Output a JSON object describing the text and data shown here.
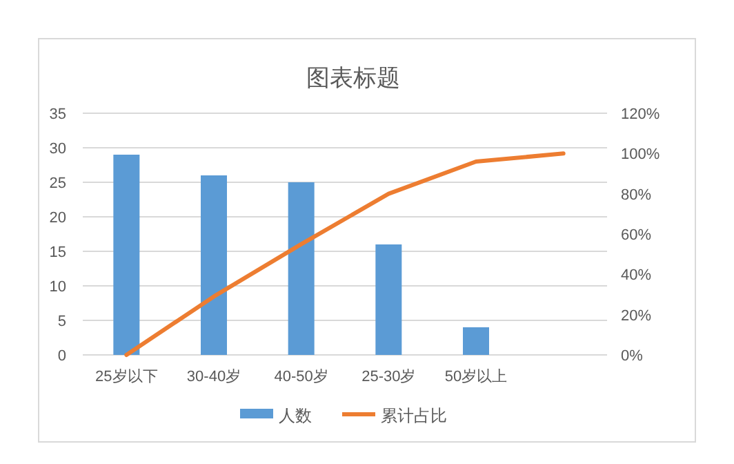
{
  "chart_data": {
    "type": "bar",
    "title": "图表标题",
    "categories": [
      "25岁以下",
      "30-40岁",
      "40-50岁",
      "25-30岁",
      "50岁以上",
      null
    ],
    "series": [
      {
        "name": "人数",
        "color": "#5b9bd5",
        "values": [
          29,
          26,
          25,
          16,
          4,
          null
        ]
      },
      {
        "name": "累计占比",
        "type": "line",
        "axis": "y2",
        "color": "#ed7d31",
        "values": [
          0,
          29,
          55,
          80,
          96,
          100
        ]
      }
    ],
    "ylim": [
      0,
      35
    ],
    "yticks": [
      0,
      5,
      10,
      15,
      20,
      25,
      30,
      35
    ],
    "y2lim": [
      0,
      120
    ],
    "y2ticks": [
      {
        "value": 0,
        "label": "0%"
      },
      {
        "value": 20,
        "label": "20%"
      },
      {
        "value": 40,
        "label": "40%"
      },
      {
        "value": 60,
        "label": "60%"
      },
      {
        "value": 80,
        "label": "80%"
      },
      {
        "value": 100,
        "label": "100%"
      },
      {
        "value": 120,
        "label": "120%"
      }
    ],
    "grid": "y",
    "legend": "bottom",
    "marker": "none"
  }
}
